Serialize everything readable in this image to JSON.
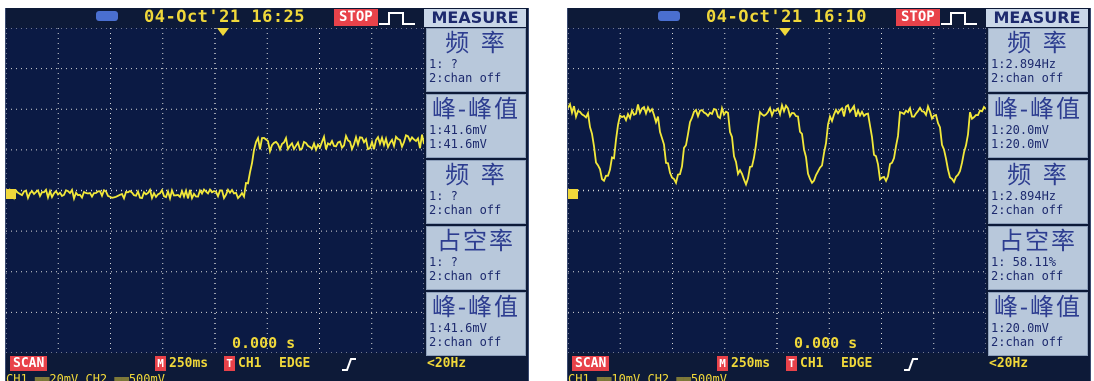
{
  "colors": {
    "screen_bg": "#0b1a44",
    "trace": "#f2e83a",
    "grid": "#d8d8d8",
    "text_yellow": "#f0d83a",
    "badge_red": "#e8424a",
    "panel_bg": "#b8c8db"
  },
  "scopes": [
    {
      "header": {
        "datetime": "04-Oct'21 16:25",
        "status": "STOP",
        "menu_title": "MEASURE"
      },
      "panels": [
        {
          "title": "频 率",
          "line1": "1:  ?",
          "line2": "2:chan off"
        },
        {
          "title": "峰-峰值",
          "line1": "1:41.6mV",
          "line2": "1:41.6mV"
        },
        {
          "title": "频 率",
          "line1": "1:  ?",
          "line2": "2:chan off"
        },
        {
          "title": "占空率",
          "line1": "1:  ?",
          "line2": "2:chan off"
        },
        {
          "title": "峰-峰值",
          "line1": "1:41.6mV",
          "line2": "2:chan off"
        }
      ],
      "time_readout": "0.000 s",
      "footer": {
        "mode": "SCAN",
        "timebase": "250ms",
        "trigger_source": "CH1",
        "trigger_type": "EDGE",
        "filter": "<20Hz"
      },
      "footer_cut": "CH1 ══20mV   CH2 ══500mV",
      "waveform": "step",
      "icons": [
        "usb-icon",
        "trigger-pulse-icon",
        "edge-rising-icon"
      ]
    },
    {
      "header": {
        "datetime": "04-Oct'21 16:10",
        "status": "STOP",
        "menu_title": "MEASURE"
      },
      "panels": [
        {
          "title": "频 率",
          "line1": "1:2.894Hz",
          "line2": "2:chan off"
        },
        {
          "title": "峰-峰值",
          "line1": "1:20.0mV",
          "line2": "1:20.0mV"
        },
        {
          "title": "频 率",
          "line1": "1:2.894Hz",
          "line2": "2:chan off"
        },
        {
          "title": "占空率",
          "line1": "1: 58.11%",
          "line2": "2:chan off"
        },
        {
          "title": "峰-峰值",
          "line1": "1:20.0mV",
          "line2": "2:chan off"
        }
      ],
      "time_readout": "0.000 s",
      "footer": {
        "mode": "SCAN",
        "timebase": "250ms",
        "trigger_source": "CH1",
        "trigger_type": "EDGE",
        "filter": "<20Hz"
      },
      "footer_cut": "CH1 ══10mV   CH2 ══500mV",
      "waveform": "periodic",
      "icons": [
        "usb-icon",
        "trigger-pulse-icon",
        "edge-rising-icon"
      ]
    }
  ]
}
